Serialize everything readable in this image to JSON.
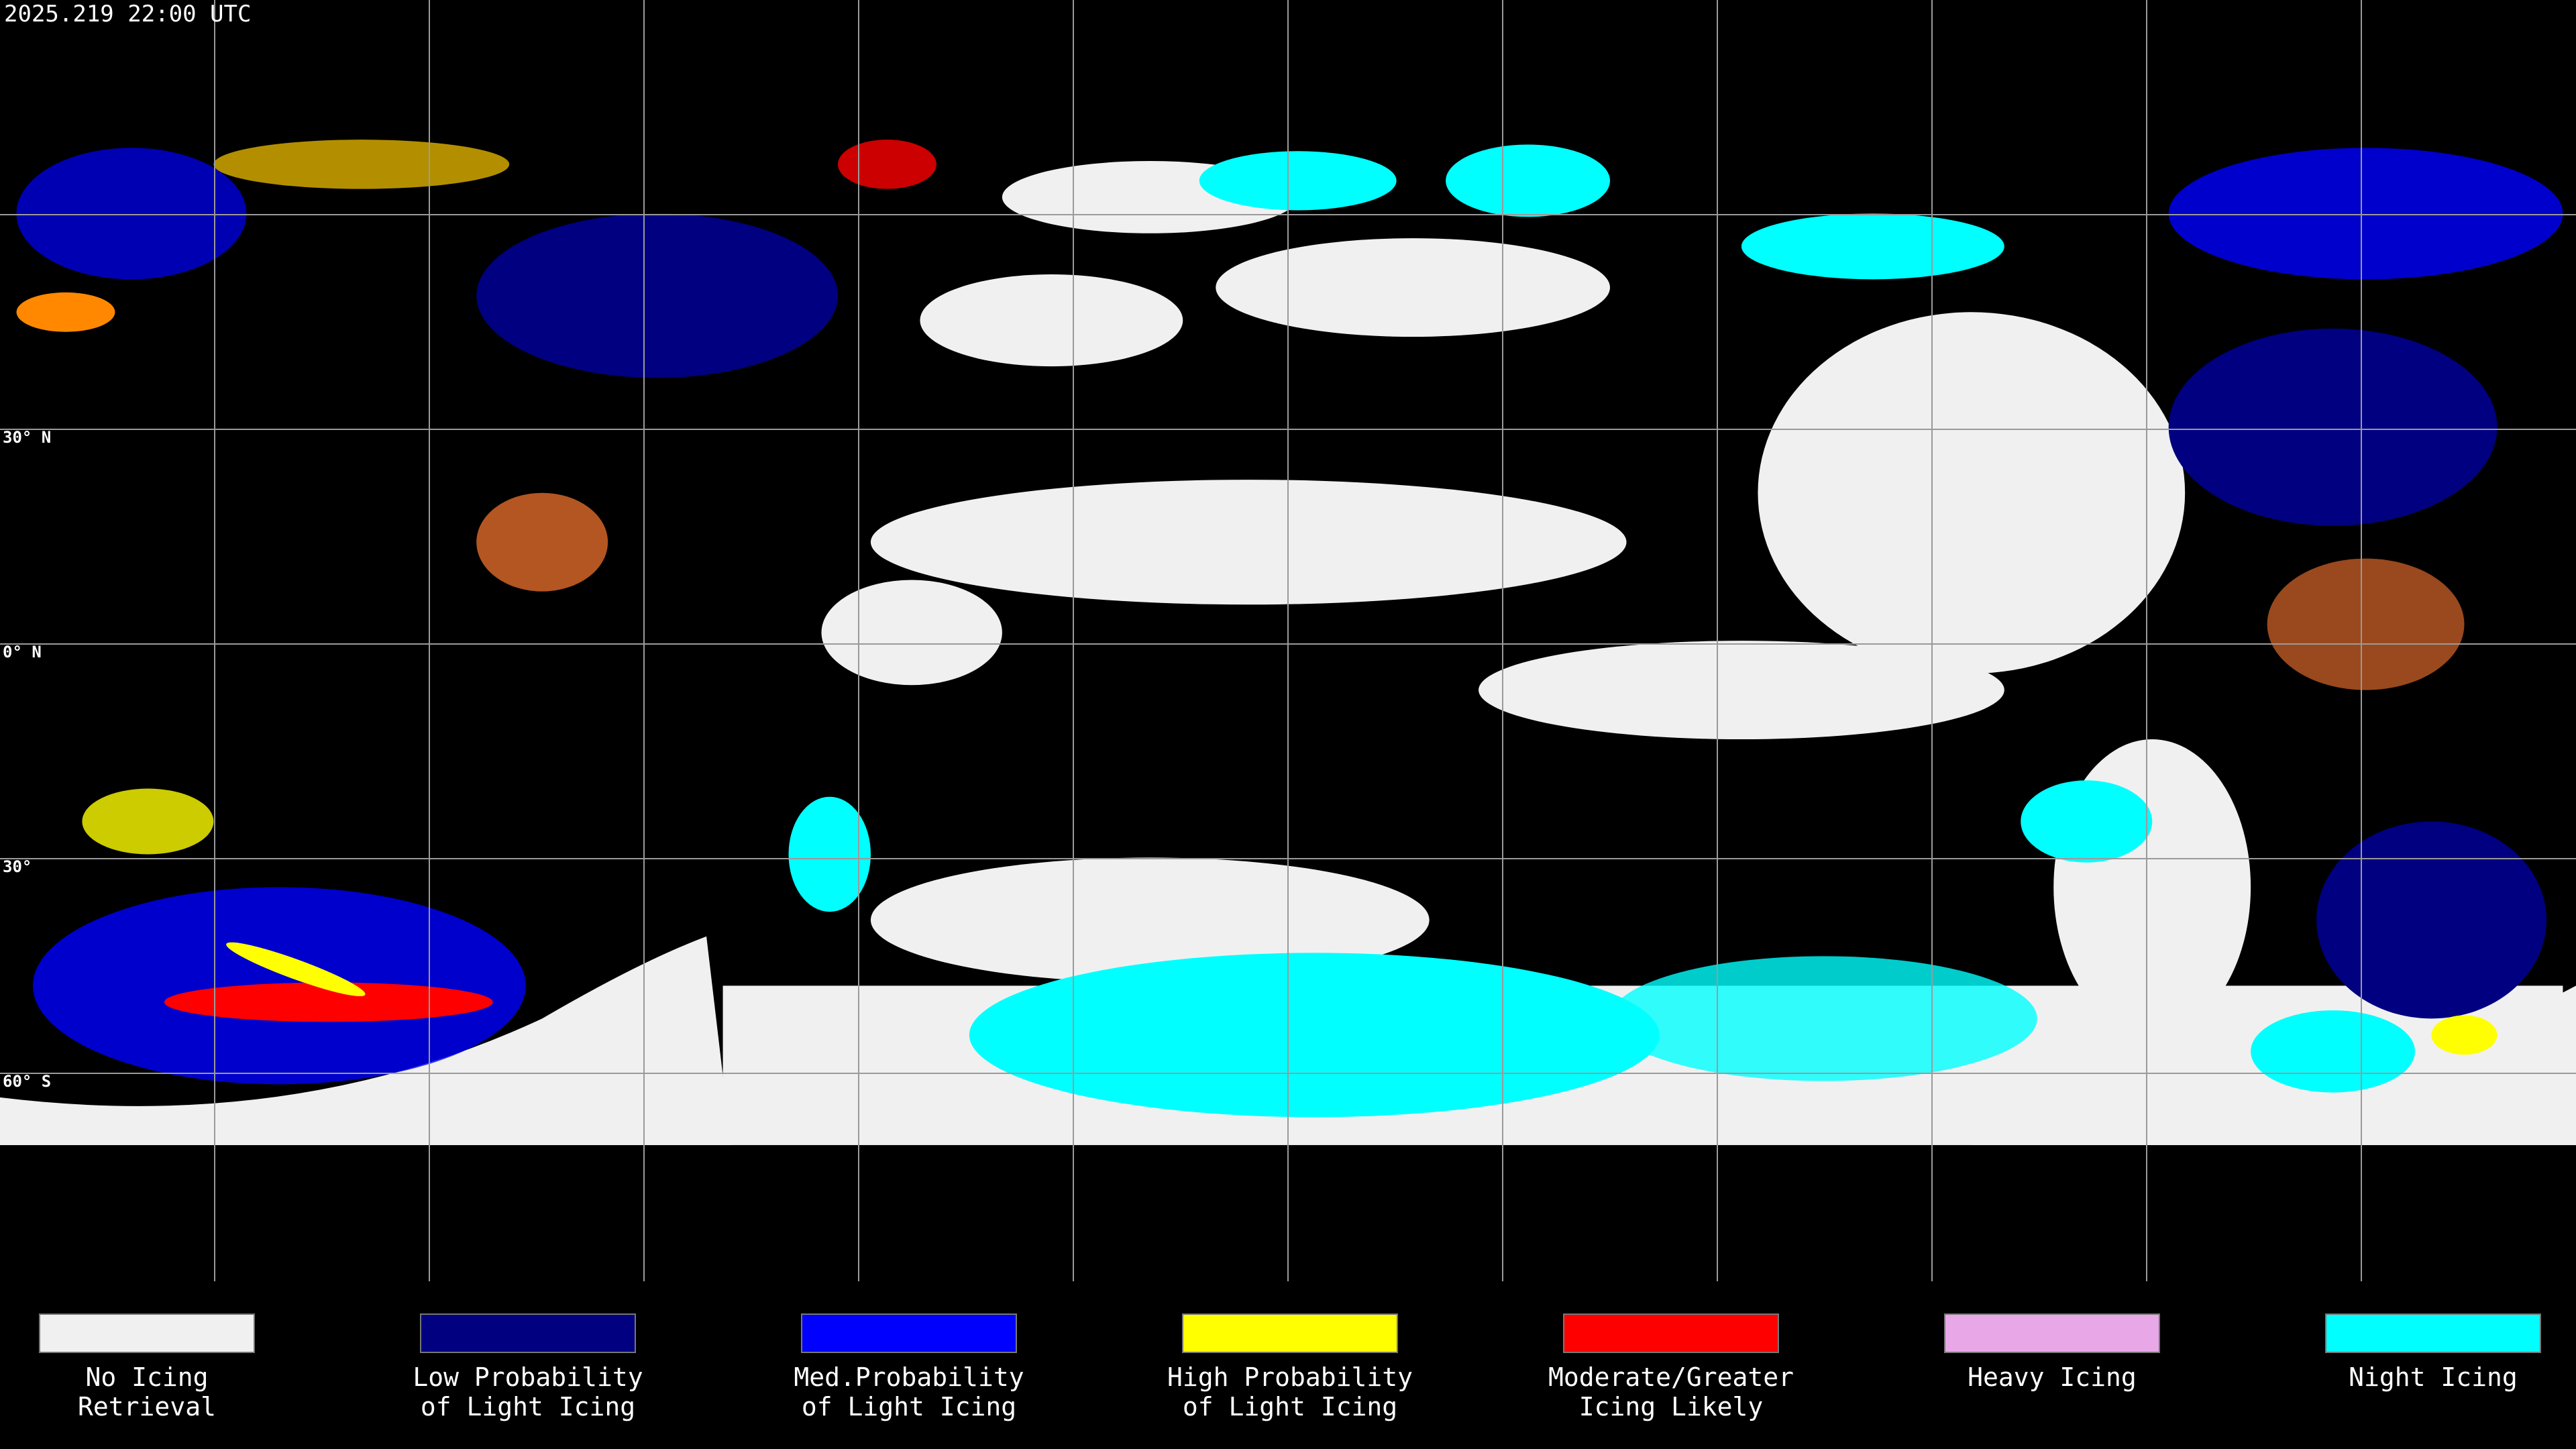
{
  "header": {
    "timestamp": "2025.219 22:00 UTC"
  },
  "map": {
    "latitude_labels": [
      "30° N",
      "0° N",
      "30°",
      "60° S"
    ]
  },
  "legend": {
    "items": [
      {
        "lines": [
          "No Icing",
          "Retrieval"
        ],
        "color": "#f0f0f0"
      },
      {
        "lines": [
          "Low Probability",
          "of Light Icing"
        ],
        "color": "#000080"
      },
      {
        "lines": [
          "Med.Probability",
          "of Light Icing"
        ],
        "color": "#0000ff"
      },
      {
        "lines": [
          "High Probability",
          "of Light Icing"
        ],
        "color": "#ffff00"
      },
      {
        "lines": [
          "Moderate/Greater",
          "Icing Likely"
        ],
        "color": "#ff0000"
      },
      {
        "lines": [
          "Heavy Icing"
        ],
        "color": "#e8a8e8"
      },
      {
        "lines": [
          "Night Icing"
        ],
        "color": "#00ffff"
      }
    ]
  }
}
